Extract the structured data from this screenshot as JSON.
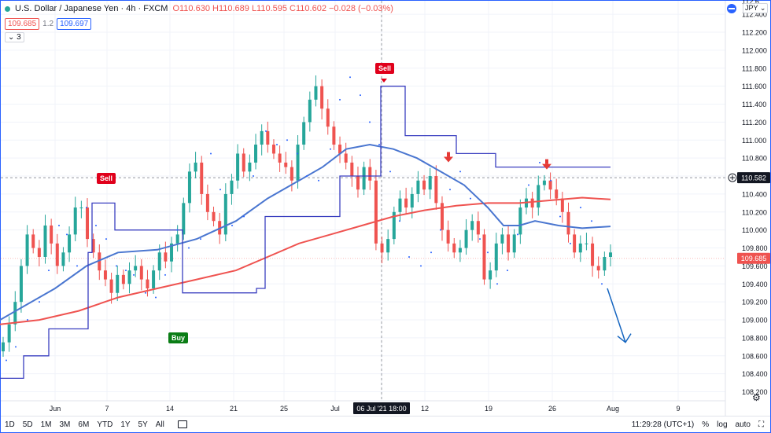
{
  "header": {
    "title": "U.S. Dollar / Japanese Yen · 4h · FXCM",
    "ohlc": "O110.630 H110.689 L110.595 C110.602 −0.028 (−0.03%)",
    "bid": "109.685",
    "spread": "1.2",
    "ask": "109.697",
    "indicators_count": "3",
    "currency": "JPY"
  },
  "bottom_bar": {
    "timeframes": [
      "1D",
      "5D",
      "1M",
      "3M",
      "6M",
      "YTD",
      "1Y",
      "5Y",
      "All"
    ],
    "clock": "11:29:28 (UTC+1)",
    "percent": "%",
    "log": "log",
    "auto": "auto"
  },
  "marks": {
    "sell_label": "Sell",
    "buy_label": "Buy"
  },
  "chart_data": {
    "type": "line",
    "symbol": "USDJPY",
    "y_ticks": [
      108.2,
      108.4,
      108.6,
      108.8,
      109.0,
      109.2,
      109.4,
      109.6,
      109.8,
      110.0,
      110.2,
      110.4,
      110.6,
      110.8,
      111.0,
      111.2,
      111.4,
      111.6,
      111.8,
      112.0,
      112.2,
      112.4
    ],
    "y_tick_top_partial": "112.6",
    "ylim": [
      108.1,
      112.55
    ],
    "x_labels": [
      "Jun",
      "7",
      "14",
      "21",
      "25",
      "Jul",
      "06 Jul '21 18:00",
      "12",
      "19",
      "26",
      "Aug",
      "9"
    ],
    "crosshair_price": "110.582",
    "last_price": "109.685",
    "colors": {
      "up": "#26a69a",
      "down": "#ef5350",
      "sma_fast": "#4a76d0",
      "sma_slow": "#ef5350",
      "stop_line": "#3a3fc0",
      "psar": "#2962ff"
    },
    "candles_close": [
      108.75,
      108.95,
      109.2,
      109.6,
      109.95,
      109.8,
      109.7,
      110.05,
      109.85,
      109.6,
      109.75,
      109.95,
      110.25,
      110.25,
      109.9,
      109.75,
      109.55,
      109.45,
      109.3,
      109.5,
      109.4,
      109.55,
      109.6,
      109.45,
      109.35,
      109.55,
      109.75,
      109.65,
      109.85,
      109.95,
      110.3,
      110.65,
      110.75,
      110.4,
      110.2,
      110.1,
      109.95,
      110.4,
      110.55,
      110.85,
      110.65,
      110.75,
      110.95,
      111.1,
      110.95,
      110.85,
      110.75,
      110.7,
      110.55,
      110.95,
      111.2,
      111.45,
      111.6,
      111.35,
      111.15,
      110.95,
      110.85,
      110.75,
      110.6,
      110.45,
      110.7,
      110.55,
      109.85,
      109.75,
      109.9,
      110.2,
      110.35,
      110.25,
      110.4,
      110.55,
      110.45,
      110.6,
      110.3,
      110.0,
      109.85,
      109.75,
      109.8,
      110.0,
      110.1,
      109.95,
      109.45,
      109.55,
      109.85,
      109.95,
      109.75,
      109.95,
      110.25,
      110.35,
      110.25,
      110.5,
      110.55,
      110.45,
      110.35,
      110.2,
      109.95,
      109.75,
      109.85,
      109.85,
      109.6,
      109.55,
      109.7,
      109.75
    ],
    "sma_fast": [
      [
        0,
        109.0
      ],
      [
        30,
        109.15
      ],
      [
        70,
        109.35
      ],
      [
        110,
        109.6
      ],
      [
        150,
        109.75
      ],
      [
        200,
        109.78
      ],
      [
        250,
        109.9
      ],
      [
        300,
        110.1
      ],
      [
        340,
        110.35
      ],
      [
        380,
        110.55
      ],
      [
        410,
        110.7
      ],
      [
        440,
        110.9
      ],
      [
        470,
        110.95
      ],
      [
        500,
        110.9
      ],
      [
        530,
        110.8
      ],
      [
        560,
        110.65
      ],
      [
        590,
        110.5
      ],
      [
        620,
        110.25
      ],
      [
        640,
        110.05
      ],
      [
        660,
        110.05
      ],
      [
        680,
        110.1
      ],
      [
        710,
        110.05
      ],
      [
        740,
        110.02
      ],
      [
        776,
        110.04
      ]
    ],
    "sma_slow": [
      [
        0,
        108.95
      ],
      [
        50,
        109.0
      ],
      [
        100,
        109.1
      ],
      [
        150,
        109.25
      ],
      [
        200,
        109.35
      ],
      [
        250,
        109.45
      ],
      [
        300,
        109.55
      ],
      [
        340,
        109.7
      ],
      [
        380,
        109.85
      ],
      [
        420,
        109.95
      ],
      [
        460,
        110.05
      ],
      [
        500,
        110.15
      ],
      [
        540,
        110.22
      ],
      [
        580,
        110.27
      ],
      [
        620,
        110.3
      ],
      [
        660,
        110.3
      ],
      [
        700,
        110.33
      ],
      [
        740,
        110.36
      ],
      [
        776,
        110.34
      ]
    ],
    "stop_line": [
      [
        0,
        108.35
      ],
      [
        30,
        108.35
      ],
      [
        30,
        108.6
      ],
      [
        62,
        108.6
      ],
      [
        62,
        108.9
      ],
      [
        112,
        108.9
      ],
      [
        112,
        109.75
      ],
      [
        117,
        109.75
      ],
      [
        117,
        110.3
      ],
      [
        146,
        110.3
      ],
      [
        146,
        110.0
      ],
      [
        232,
        110.0
      ],
      [
        232,
        109.3
      ],
      [
        326,
        109.3
      ],
      [
        326,
        109.35
      ],
      [
        337,
        109.35
      ],
      [
        337,
        110.15
      ],
      [
        432,
        110.15
      ],
      [
        432,
        110.6
      ],
      [
        484,
        110.6
      ],
      [
        484,
        111.6
      ],
      [
        515,
        111.6
      ],
      [
        515,
        111.05
      ],
      [
        580,
        111.05
      ],
      [
        580,
        110.85
      ],
      [
        630,
        110.85
      ],
      [
        630,
        110.7
      ],
      [
        776,
        110.7
      ]
    ],
    "psar": [
      [
        8,
        108.55
      ],
      [
        20,
        108.7
      ],
      [
        35,
        109.0
      ],
      [
        50,
        109.2
      ],
      [
        62,
        109.55
      ],
      [
        75,
        110.05
      ],
      [
        85,
        109.95
      ],
      [
        98,
        109.6
      ],
      [
        110,
        110.25
      ],
      [
        122,
        110.05
      ],
      [
        135,
        109.9
      ],
      [
        148,
        109.6
      ],
      [
        160,
        109.55
      ],
      [
        170,
        109.5
      ],
      [
        185,
        109.3
      ],
      [
        198,
        109.25
      ],
      [
        210,
        109.5
      ],
      [
        225,
        110.0
      ],
      [
        240,
        109.8
      ],
      [
        255,
        109.9
      ],
      [
        268,
        110.85
      ],
      [
        280,
        110.45
      ],
      [
        295,
        110.05
      ],
      [
        310,
        110.15
      ],
      [
        322,
        110.6
      ],
      [
        338,
        111.1
      ],
      [
        352,
        110.95
      ],
      [
        365,
        111.0
      ],
      [
        378,
        110.85
      ],
      [
        390,
        110.6
      ],
      [
        405,
        110.55
      ],
      [
        420,
        110.9
      ],
      [
        432,
        111.45
      ],
      [
        445,
        111.7
      ],
      [
        458,
        111.5
      ],
      [
        470,
        111.2
      ],
      [
        482,
        110.95
      ],
      [
        496,
        110.65
      ],
      [
        508,
        110.1
      ],
      [
        520,
        109.7
      ],
      [
        535,
        109.6
      ],
      [
        548,
        109.75
      ],
      [
        560,
        110.0
      ],
      [
        572,
        110.45
      ],
      [
        585,
        110.65
      ],
      [
        598,
        110.35
      ],
      [
        610,
        109.9
      ],
      [
        620,
        109.75
      ],
      [
        632,
        109.4
      ],
      [
        645,
        109.55
      ],
      [
        658,
        109.95
      ],
      [
        672,
        110.5
      ],
      [
        686,
        110.75
      ],
      [
        700,
        110.55
      ],
      [
        712,
        110.15
      ],
      [
        725,
        109.85
      ],
      [
        738,
        110.25
      ],
      [
        752,
        110.1
      ],
      [
        765,
        109.4
      ]
    ],
    "sell_marks": [
      [
        135,
        110.56
      ],
      [
        488,
        111.65
      ]
    ],
    "buy_marks": [
      [
        225,
        108.85
      ]
    ],
    "down_arrows": [
      [
        570,
        110.78
      ],
      [
        695,
        110.7
      ]
    ],
    "projection": [
      [
        772,
        109.35
      ],
      [
        795,
        108.75
      ]
    ]
  }
}
